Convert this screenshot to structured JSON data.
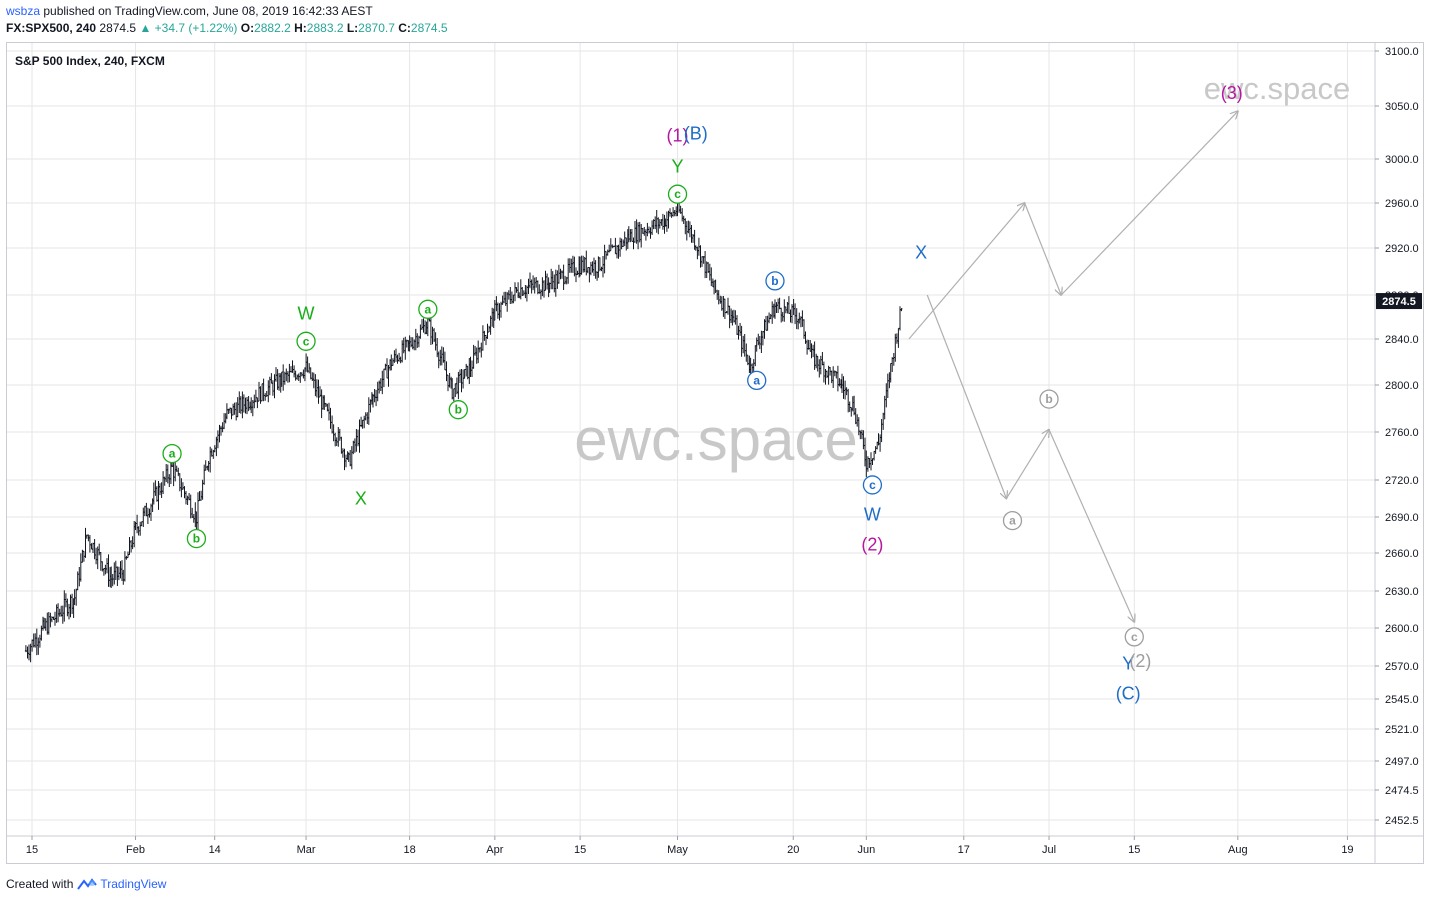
{
  "header": {
    "user": "wsbza",
    "published": "published on TradingView.com, June 08, 2019 16:42:33 AEST",
    "symbol_line": "FX:SPX500, 240",
    "last": "2874.5",
    "change": "▲ +34.7 (+1.22%)",
    "o_label": "O:",
    "o": "2882.2",
    "h_label": "H:",
    "h": "2883.2",
    "l_label": "L:",
    "l": "2870.7",
    "c_label": "C:",
    "c": "2874.5"
  },
  "footer": {
    "created": "Created with",
    "brand": "TradingView"
  },
  "chart_data": {
    "type": "ohlc",
    "title": "S&P 500 Index, 240, FXCM",
    "watermark": "ewc.space",
    "x_tick_labels": [
      "15",
      "Feb",
      "14",
      "Mar",
      "18",
      "Apr",
      "15",
      "May",
      "20",
      "Jun",
      "17",
      "Jul",
      "15",
      "Aug",
      "19"
    ],
    "y_tick_labels": [
      "3100.0",
      "3050.0",
      "3000.0",
      "2960.0",
      "2920.0",
      "2880.0",
      "2840.0",
      "2800.0",
      "2760.0",
      "2720.0",
      "2690.0",
      "2660.0",
      "2630.0",
      "2600.0",
      "2570.0",
      "2545.0",
      "2521.0",
      "2497.0",
      "2474.5",
      "2452.5"
    ],
    "last_price_label": "2874.5",
    "price_path": [
      {
        "date": "2019-01-14",
        "price": 2582
      },
      {
        "date": "2019-01-17",
        "price": 2600
      },
      {
        "date": "2019-01-22",
        "price": 2625
      },
      {
        "date": "2019-01-24",
        "price": 2675
      },
      {
        "date": "2019-01-28",
        "price": 2640
      },
      {
        "date": "2019-01-30",
        "price": 2645
      },
      {
        "date": "2019-02-01",
        "price": 2680
      },
      {
        "date": "2019-02-04",
        "price": 2705
      },
      {
        "date": "2019-02-07",
        "price": 2730
      },
      {
        "date": "2019-02-11",
        "price": 2690
      },
      {
        "date": "2019-02-13",
        "price": 2740
      },
      {
        "date": "2019-02-16",
        "price": 2775
      },
      {
        "date": "2019-02-20",
        "price": 2788
      },
      {
        "date": "2019-02-25",
        "price": 2805
      },
      {
        "date": "2019-03-01",
        "price": 2815
      },
      {
        "date": "2019-03-04",
        "price": 2780
      },
      {
        "date": "2019-03-08",
        "price": 2735
      },
      {
        "date": "2019-03-12",
        "price": 2790
      },
      {
        "date": "2019-03-15",
        "price": 2820
      },
      {
        "date": "2019-03-18",
        "price": 2835
      },
      {
        "date": "2019-03-21",
        "price": 2855
      },
      {
        "date": "2019-03-25",
        "price": 2795
      },
      {
        "date": "2019-03-28",
        "price": 2815
      },
      {
        "date": "2019-04-01",
        "price": 2865
      },
      {
        "date": "2019-04-05",
        "price": 2885
      },
      {
        "date": "2019-04-10",
        "price": 2890
      },
      {
        "date": "2019-04-15",
        "price": 2905
      },
      {
        "date": "2019-04-18",
        "price": 2905
      },
      {
        "date": "2019-04-23",
        "price": 2930
      },
      {
        "date": "2019-04-29",
        "price": 2945
      },
      {
        "date": "2019-05-01",
        "price": 2955
      },
      {
        "date": "2019-05-04",
        "price": 2925
      },
      {
        "date": "2019-05-07",
        "price": 2885
      },
      {
        "date": "2019-05-10",
        "price": 2860
      },
      {
        "date": "2019-05-13",
        "price": 2815
      },
      {
        "date": "2019-05-14",
        "price": 2835
      },
      {
        "date": "2019-05-17",
        "price": 2870
      },
      {
        "date": "2019-05-21",
        "price": 2860
      },
      {
        "date": "2019-05-23",
        "price": 2825
      },
      {
        "date": "2019-05-28",
        "price": 2800
      },
      {
        "date": "2019-05-30",
        "price": 2780
      },
      {
        "date": "2019-06-01",
        "price": 2735
      },
      {
        "date": "2019-06-03",
        "price": 2750
      },
      {
        "date": "2019-06-05",
        "price": 2815
      },
      {
        "date": "2019-06-07",
        "price": 2874.5
      }
    ],
    "projection_path": [
      {
        "date": "2019-06-08",
        "price": 2840
      },
      {
        "date": "2019-06-27",
        "price": 2960
      },
      {
        "date": "2019-07-03",
        "price": 2880
      },
      {
        "date": "2019-08-01",
        "price": 3045
      }
    ],
    "projection_path_2": [
      {
        "date": "2019-06-11",
        "price": 2880
      },
      {
        "date": "2019-06-24",
        "price": 2705
      },
      {
        "date": "2019-07-01",
        "price": 2762
      },
      {
        "date": "2019-07-15",
        "price": 2605
      }
    ],
    "wave_labels": [
      {
        "text": "a",
        "circled": true,
        "color": "#1aad1a",
        "date": "2019-02-07",
        "price": 2742
      },
      {
        "text": "b",
        "circled": true,
        "color": "#1aad1a",
        "date": "2019-02-11",
        "price": 2672
      },
      {
        "text": "c",
        "circled": true,
        "color": "#1aad1a",
        "date": "2019-03-01",
        "price": 2838
      },
      {
        "text": "W",
        "circled": false,
        "color": "#1aad1a",
        "date": "2019-03-01",
        "price": 2863
      },
      {
        "text": "X",
        "circled": false,
        "color": "#1aad1a",
        "date": "2019-03-10",
        "price": 2705
      },
      {
        "text": "a",
        "circled": true,
        "color": "#1aad1a",
        "date": "2019-03-21",
        "price": 2867
      },
      {
        "text": "b",
        "circled": true,
        "color": "#1aad1a",
        "date": "2019-03-26",
        "price": 2779
      },
      {
        "text": "c",
        "circled": true,
        "color": "#1aad1a",
        "date": "2019-05-01",
        "price": 2968
      },
      {
        "text": "Y",
        "circled": false,
        "color": "#1aad1a",
        "date": "2019-05-01",
        "price": 2993
      },
      {
        "text": "(1)",
        "circled": false,
        "color": "#b5179e",
        "date": "2019-05-01",
        "price": 3022
      },
      {
        "text": "(B)",
        "circled": false,
        "color": "#1e6dc8",
        "date": "2019-05-04",
        "price": 3024
      },
      {
        "text": "a",
        "circled": true,
        "color": "#1e6dc8",
        "date": "2019-05-14",
        "price": 2804
      },
      {
        "text": "b",
        "circled": true,
        "color": "#1e6dc8",
        "date": "2019-05-17",
        "price": 2892
      },
      {
        "text": "c",
        "circled": true,
        "color": "#1e6dc8",
        "date": "2019-06-02",
        "price": 2716
      },
      {
        "text": "W",
        "circled": false,
        "color": "#1e6dc8",
        "date": "2019-06-02",
        "price": 2692
      },
      {
        "text": "(2)",
        "circled": false,
        "color": "#b5179e",
        "date": "2019-06-02",
        "price": 2667
      },
      {
        "text": "X",
        "circled": false,
        "color": "#1e6dc8",
        "date": "2019-06-10",
        "price": 2916
      },
      {
        "text": "a",
        "circled": true,
        "color": "#9e9e9e",
        "date": "2019-06-25",
        "price": 2687
      },
      {
        "text": "b",
        "circled": true,
        "color": "#9e9e9e",
        "date": "2019-07-01",
        "price": 2788
      },
      {
        "text": "c",
        "circled": true,
        "color": "#9e9e9e",
        "date": "2019-07-15",
        "price": 2593
      },
      {
        "text": "Y",
        "circled": false,
        "color": "#1e6dc8",
        "date": "2019-07-14",
        "price": 2572
      },
      {
        "text": "(C)",
        "circled": false,
        "color": "#1e6dc8",
        "date": "2019-07-14",
        "price": 2549
      },
      {
        "text": "(2)",
        "circled": false,
        "color": "#9e9e9e",
        "date": "2019-07-16",
        "price": 2574
      },
      {
        "text": "(3)",
        "circled": false,
        "color": "#b5179e",
        "date": "2019-07-31",
        "price": 3062
      }
    ],
    "colors": {
      "bars": "#131722",
      "grid": "#e6e6e6",
      "axis_text": "#131722",
      "projection": "#b0b0b0",
      "watermark": "#c8c8c8"
    }
  }
}
